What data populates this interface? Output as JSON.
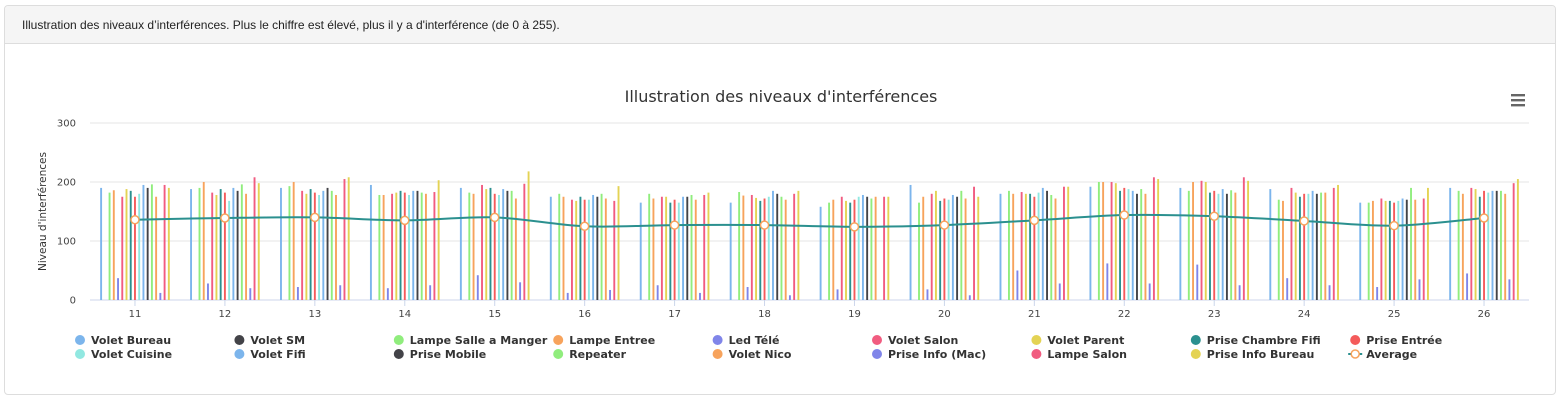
{
  "header": {
    "description": "Illustration des niveaux d’interférences. Plus le chiffre est élevé, plus il y a d'interférence (de 0 à 255)."
  },
  "icons": {
    "menu": "hamburger-menu-icon"
  },
  "chart_data": {
    "type": "bar",
    "title": "Illustration des niveaux d'interférences",
    "xlabel": "",
    "ylabel": "Niveau d'interférences",
    "ylim": [
      0,
      300
    ],
    "yticks": [
      0,
      100,
      200,
      300
    ],
    "grid": true,
    "legend_position": "bottom",
    "categories": [
      "11",
      "12",
      "13",
      "14",
      "15",
      "16",
      "17",
      "18",
      "19",
      "20",
      "21",
      "22",
      "23",
      "24",
      "25",
      "26"
    ],
    "series": [
      {
        "name": "Volet Bureau",
        "color": "#7cb5ec",
        "values": [
          190,
          188,
          190,
          195,
          190,
          175,
          165,
          165,
          158,
          195,
          180,
          192,
          190,
          188,
          165,
          190
        ]
      },
      {
        "name": "Volet SM",
        "color": "#434348",
        "values": [
          0,
          0,
          0,
          0,
          0,
          0,
          0,
          0,
          0,
          0,
          0,
          0,
          0,
          0,
          0,
          0
        ]
      },
      {
        "name": "Lampe Salle a Manger",
        "color": "#90ed7d",
        "values": [
          182,
          190,
          193,
          178,
          182,
          180,
          180,
          183,
          165,
          165,
          185,
          200,
          185,
          170,
          165,
          185
        ]
      },
      {
        "name": "Lampe Entree",
        "color": "#f7a35c",
        "values": [
          186,
          200,
          200,
          178,
          180,
          175,
          172,
          177,
          170,
          175,
          180,
          200,
          200,
          168,
          168,
          180
        ]
      },
      {
        "name": "Led Télé",
        "color": "#8085e9",
        "values": [
          37,
          28,
          22,
          20,
          42,
          12,
          25,
          22,
          18,
          18,
          50,
          62,
          60,
          37,
          22,
          45
        ]
      },
      {
        "name": "Volet Salon",
        "color": "#f15c80",
        "values": [
          175,
          182,
          185,
          180,
          195,
          170,
          175,
          178,
          175,
          180,
          183,
          200,
          202,
          190,
          172,
          190
        ]
      },
      {
        "name": "Volet Parent",
        "color": "#e4d354",
        "values": [
          188,
          178,
          180,
          182,
          188,
          168,
          175,
          173,
          168,
          185,
          180,
          198,
          200,
          182,
          168,
          188
        ]
      },
      {
        "name": "Prise Chambre Fifi",
        "color": "#2b908f",
        "values": [
          185,
          188,
          188,
          185,
          190,
          175,
          165,
          168,
          165,
          168,
          180,
          185,
          182,
          175,
          168,
          175
        ]
      },
      {
        "name": "Prise Entrée",
        "color": "#f45b5b",
        "values": [
          175,
          182,
          182,
          182,
          180,
          170,
          170,
          172,
          170,
          172,
          175,
          190,
          185,
          180,
          165,
          185
        ]
      },
      {
        "name": "Volet Cuisine",
        "color": "#91e8e1",
        "values": [
          180,
          168,
          178,
          178,
          178,
          170,
          165,
          175,
          175,
          170,
          182,
          188,
          180,
          180,
          168,
          182
        ]
      },
      {
        "name": "Volet Fifi",
        "color": "#7cb5ec",
        "values": [
          195,
          190,
          185,
          185,
          188,
          178,
          175,
          185,
          178,
          178,
          190,
          185,
          188,
          185,
          172,
          185
        ]
      },
      {
        "name": "Prise Mobile",
        "color": "#434348",
        "values": [
          190,
          185,
          190,
          185,
          185,
          175,
          175,
          180,
          175,
          175,
          185,
          180,
          180,
          180,
          170,
          185
        ]
      },
      {
        "name": "Repeater",
        "color": "#90ed7d",
        "values": [
          196,
          196,
          185,
          182,
          185,
          180,
          178,
          175,
          172,
          185,
          178,
          188,
          186,
          182,
          190,
          185
        ]
      },
      {
        "name": "Volet Nico",
        "color": "#f7a35c",
        "values": [
          175,
          180,
          178,
          180,
          172,
          172,
          170,
          170,
          175,
          172,
          172,
          180,
          182,
          182,
          170,
          180
        ]
      },
      {
        "name": "Prise Info (Mac)",
        "color": "#8085e9",
        "values": [
          12,
          20,
          25,
          25,
          30,
          17,
          12,
          8,
          0,
          8,
          28,
          28,
          25,
          25,
          35,
          35
        ]
      },
      {
        "name": "Lampe Salon",
        "color": "#f15c80",
        "values": [
          195,
          208,
          205,
          183,
          197,
          168,
          178,
          180,
          175,
          192,
          192,
          208,
          208,
          190,
          172,
          198
        ]
      },
      {
        "name": "Prise Info Bureau",
        "color": "#e4d354",
        "values": [
          190,
          198,
          208,
          203,
          218,
          193,
          182,
          185,
          175,
          175,
          192,
          205,
          202,
          195,
          190,
          205
        ]
      }
    ],
    "average": {
      "name": "Average",
      "color": "#2b908f",
      "values": [
        136,
        139,
        140,
        135,
        140,
        125,
        127,
        127,
        124,
        127,
        135,
        144,
        142,
        134,
        126,
        139
      ]
    }
  }
}
